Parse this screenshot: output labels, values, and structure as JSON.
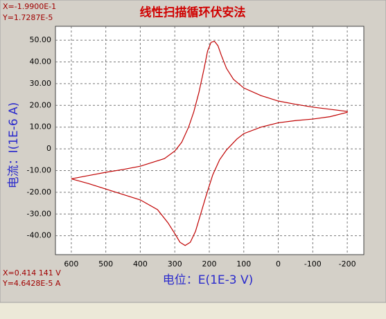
{
  "chart_data": {
    "type": "line",
    "title": "线性扫描循环伏安法",
    "x_label": "电位：E(1E-3 V)",
    "y_label": "电流：I(1E-6 A)",
    "cursor_top": [
      "X=-1.9900E-1",
      "Y=1.7287E-5"
    ],
    "cursor_bottom": [
      "X=0.414 141 V",
      "Y=4.6428E-5 A"
    ],
    "xlim": [
      646,
      -248
    ],
    "ylim": [
      -48.7,
      56.4
    ],
    "xticks": [
      600,
      500,
      400,
      300,
      200,
      100,
      0,
      -100,
      -200
    ],
    "yticks": [
      {
        "value": 50,
        "label": "50.00"
      },
      {
        "value": 40,
        "label": "40.00"
      },
      {
        "value": 30,
        "label": "30.00"
      },
      {
        "value": 20,
        "label": "20.00"
      },
      {
        "value": 10,
        "label": "10.00"
      },
      0,
      {
        "value": -10,
        "label": "-10.00"
      },
      {
        "value": -20,
        "label": "-20.00"
      },
      {
        "value": -30,
        "label": "-30.00"
      },
      {
        "value": -40,
        "label": "-40.00"
      }
    ],
    "grid": true,
    "series": [
      {
        "color": "#c00000",
        "x": [
          600,
          550,
          500,
          450,
          400,
          350,
          320,
          300,
          285,
          270,
          255,
          240,
          225,
          210,
          190,
          170,
          150,
          120,
          100,
          50,
          0,
          -50,
          -100,
          -150,
          -200,
          -200,
          -150,
          -100,
          -50,
          0,
          50,
          100,
          130,
          150,
          165,
          175,
          185,
          195,
          205,
          215,
          230,
          245,
          260,
          280,
          300,
          330,
          400,
          450,
          500,
          550,
          600
        ],
        "values": [
          -13.8,
          -16,
          -18.5,
          -21,
          -23.5,
          -28,
          -34,
          -39,
          -43,
          -44.5,
          -43,
          -38,
          -30,
          -22,
          -12,
          -5,
          -0.5,
          4.5,
          7,
          10,
          12,
          13,
          13.7,
          14.8,
          16.8,
          17.2,
          18.2,
          19.2,
          20.5,
          22,
          24.5,
          28,
          32,
          37,
          43,
          47.5,
          49.5,
          49,
          45,
          37,
          26,
          17,
          10,
          3,
          -1,
          -4.5,
          -8,
          -9.5,
          -10.8,
          -12.3,
          -13.8
        ]
      }
    ]
  }
}
